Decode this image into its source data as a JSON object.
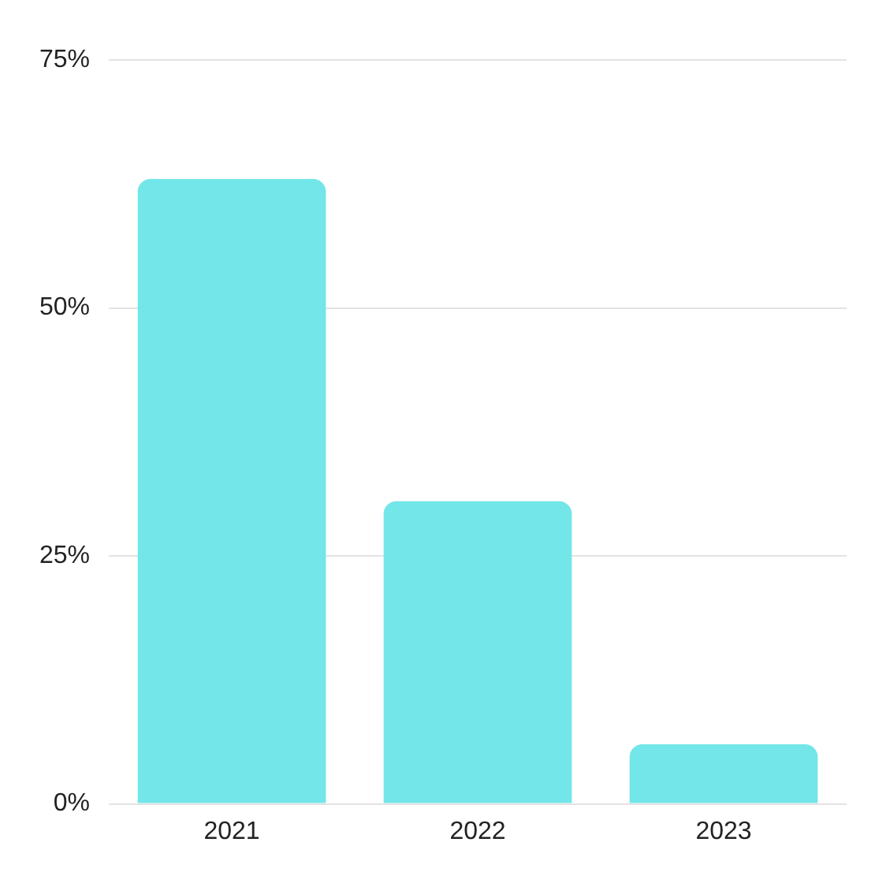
{
  "chart_data": {
    "type": "bar",
    "categories": [
      "2021",
      "2022",
      "2023"
    ],
    "values": [
      63,
      30.5,
      6
    ],
    "color": "#72e6e8",
    "ylim": [
      0,
      75
    ],
    "yticks": [
      {
        "value": 0,
        "label": "0%"
      },
      {
        "value": 25,
        "label": "25%"
      },
      {
        "value": 50,
        "label": "50%"
      },
      {
        "value": 75,
        "label": "75%"
      }
    ],
    "grid": "y"
  }
}
